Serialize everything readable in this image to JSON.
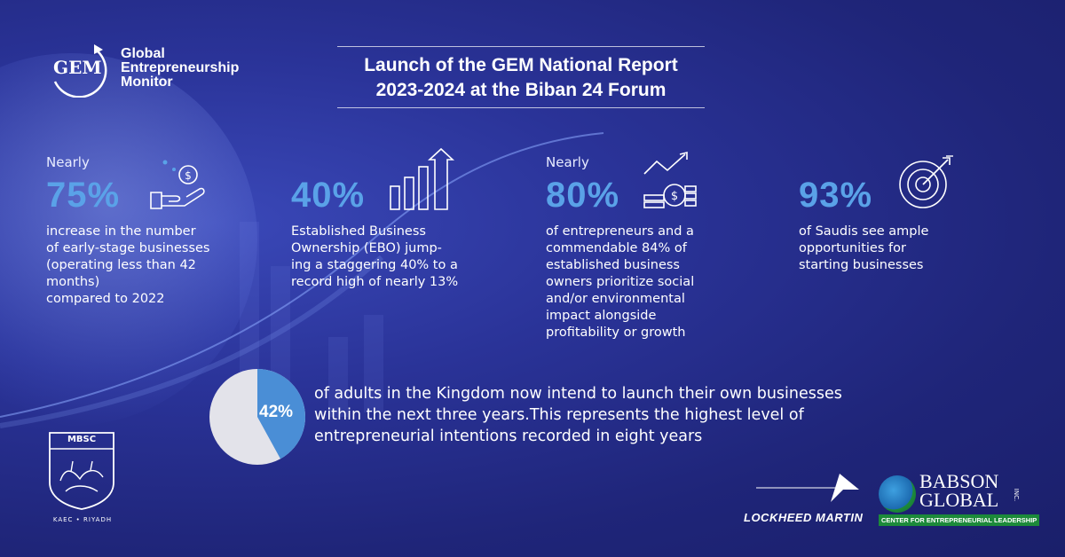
{
  "brand": {
    "gem_badge": "GEM",
    "gem_name": [
      "Global",
      "Entrepreneurship",
      "Monitor"
    ]
  },
  "header": {
    "title_line1": "Launch of the GEM National Report",
    "title_line2": "2023-2024 at the Biban 24 Forum"
  },
  "stats": [
    {
      "prefix": "Nearly",
      "value": "75%",
      "icon": "hand-coin-icon",
      "lines": [
        "increase in the number",
        "of early-stage businesses",
        "(operating less than 42",
        "months)",
        "compared to 2022"
      ]
    },
    {
      "prefix": "",
      "value": "40%",
      "icon": "bar-chart-arrow-icon",
      "lines": [
        "Established Business",
        "Ownership (EBO) jump-",
        "ing a staggering 40% to a",
        "record high of nearly 13%"
      ]
    },
    {
      "prefix": "Nearly",
      "value": "80%",
      "icon": "money-trend-icon",
      "lines": [
        "of entrepreneurs and a",
        "commendable 84% of",
        "established business",
        "owners prioritize social",
        "and/or environmental",
        "impact alongside",
        "profitability or growth"
      ]
    },
    {
      "prefix": "",
      "value": "93%",
      "icon": "target-icon",
      "lines": [
        "of Saudis see ample",
        "opportunities for",
        "starting businesses"
      ]
    }
  ],
  "intent": {
    "percent_label": "42%",
    "percent_value": 42,
    "lines": [
      "of adults in the Kingdom now intend to launch their own businesses",
      "within the next three years.This represents the highest level of",
      "entrepreneurial intentions recorded in eight years"
    ]
  },
  "footer": {
    "mbsc_label": "MBSC",
    "mbsc_caption": "KAEC • RIYADH",
    "lockheed": "LOCKHEED MARTIN",
    "babson_line1": "BABSON",
    "babson_line2": "GLOBAL",
    "babson_inc": "INC.",
    "babson_tag": "CENTER FOR ENTREPRENEURIAL LEADERSHIP"
  },
  "colors": {
    "background": "#222a86",
    "accent_blue": "#5aa2e8",
    "pie_grey": "#e3e3ea",
    "babson_green": "#1c8a3a"
  }
}
